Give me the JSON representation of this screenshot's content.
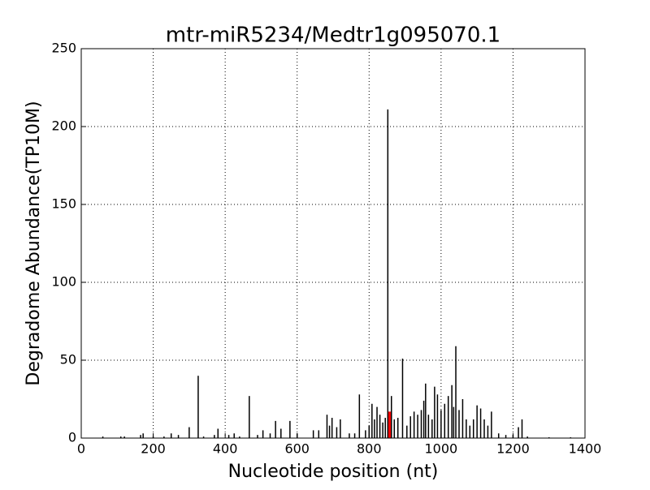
{
  "chart_data": {
    "type": "bar",
    "title": "mtr-miR5234/Medtr1g095070.1",
    "x_label": "Nucleotide position (nt)",
    "y_label": "Degradome Abundance(TP10M)",
    "x": [
      60,
      110,
      120,
      165,
      172,
      200,
      230,
      250,
      270,
      300,
      325,
      340,
      370,
      380,
      410,
      425,
      440,
      467,
      490,
      505,
      525,
      540,
      555,
      580,
      600,
      645,
      660,
      683,
      690,
      697,
      710,
      720,
      745,
      760,
      773,
      790,
      800,
      808,
      815,
      822,
      830,
      838,
      845,
      852,
      857,
      862,
      870,
      880,
      893,
      905,
      915,
      925,
      935,
      945,
      952,
      957,
      965,
      975,
      982,
      990,
      1000,
      1010,
      1020,
      1030,
      1035,
      1041,
      1050,
      1060,
      1070,
      1080,
      1090,
      1100,
      1110,
      1120,
      1130,
      1140,
      1160,
      1180,
      1200,
      1215,
      1225,
      1240,
      1300,
      1360
    ],
    "series": [
      {
        "color": "#000000",
        "values": [
          1,
          1,
          1,
          2,
          3,
          1,
          1,
          3,
          2,
          7,
          40,
          1,
          2,
          6,
          2,
          3,
          1,
          27,
          2,
          5,
          3,
          11,
          6,
          11,
          3,
          5,
          5,
          15,
          8,
          13,
          7,
          12,
          3,
          3,
          28,
          5,
          8,
          22,
          12,
          20,
          15,
          10,
          13,
          211,
          null,
          27,
          12,
          13,
          51,
          8,
          14,
          17,
          15,
          18,
          24,
          35,
          15,
          12,
          33,
          28,
          18,
          22,
          27,
          34,
          20,
          59,
          18,
          25,
          12,
          8,
          12,
          21,
          19,
          12,
          8,
          17,
          3,
          2,
          2,
          7,
          12,
          1,
          0.5,
          0.5
        ]
      },
      {
        "color": "#ff0000",
        "values": [
          null,
          null,
          null,
          null,
          null,
          null,
          null,
          null,
          null,
          null,
          null,
          null,
          null,
          null,
          null,
          null,
          null,
          null,
          null,
          null,
          null,
          null,
          null,
          null,
          null,
          null,
          null,
          null,
          null,
          null,
          null,
          null,
          null,
          null,
          null,
          null,
          null,
          null,
          null,
          null,
          null,
          null,
          null,
          null,
          17,
          null,
          null,
          null,
          null,
          null,
          null,
          null,
          null,
          null,
          null,
          null,
          null,
          null,
          null,
          null,
          null,
          null,
          null,
          null,
          null,
          null,
          null,
          null,
          null,
          null,
          null,
          null,
          null,
          null,
          null,
          null,
          null,
          null,
          null,
          null,
          null,
          null,
          null,
          null
        ]
      }
    ],
    "xlim": [
      0,
      1400
    ],
    "xticks": [
      0,
      200,
      400,
      600,
      800,
      1000,
      1200,
      1400
    ],
    "ylim": [
      0,
      250
    ],
    "yticks": [
      0,
      50,
      100,
      150,
      200,
      250
    ],
    "grid": true
  }
}
